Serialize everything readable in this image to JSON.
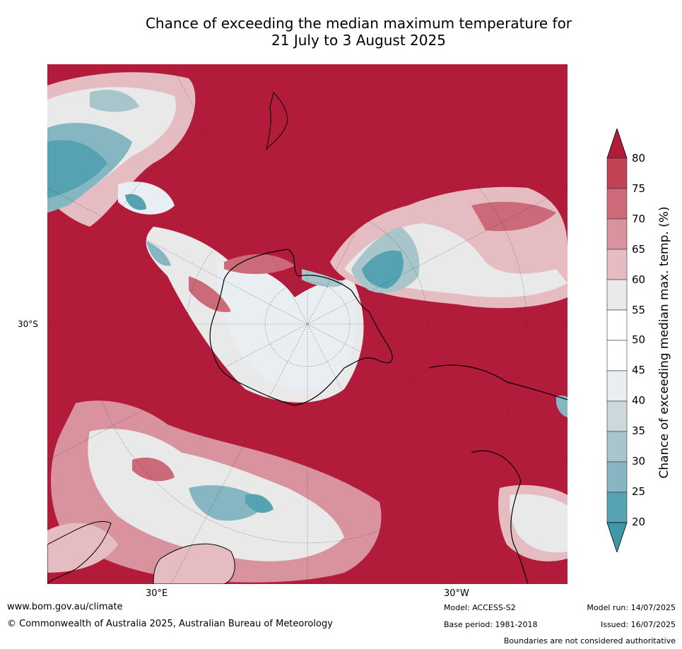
{
  "title": {
    "line1": "Chance of exceeding the median maximum temperature for",
    "line2": "21 July to 3 August 2025"
  },
  "map": {
    "lat_labels": [
      "30°S"
    ],
    "lon_labels": [
      "30°E",
      "30°W"
    ],
    "colors": {
      "p80": "#b31b3a",
      "p75": "#c14155",
      "p70": "#cc6a79",
      "p65": "#d8939e",
      "p60": "#e5bcc2",
      "p55": "#e9e9e9",
      "p50": "#ffffff",
      "p45": "#ffffff",
      "p40": "#e8eef1",
      "p35": "#ccd8dc",
      "p30": "#a9c5cc",
      "p25": "#86b6c1",
      "p20": "#55a3b2",
      "land_outline": "#000000"
    }
  },
  "colorbar": {
    "title": "Chance of exceeding median max. temp. (%)",
    "ticks": [
      "80",
      "75",
      "70",
      "65",
      "60",
      "55",
      "50",
      "45",
      "40",
      "35",
      "30",
      "25",
      "20"
    ],
    "colors": [
      "#b31b3a",
      "#c14155",
      "#cc6a79",
      "#d8939e",
      "#e5bcc2",
      "#e9e9e9",
      "#ffffff",
      "#ffffff",
      "#e8eef1",
      "#ccd8dc",
      "#a9c5cc",
      "#86b6c1",
      "#55a3b2",
      "#3f97a8"
    ]
  },
  "footer": {
    "website": "www.bom.gov.au/climate",
    "copyright": "© Commonwealth of Australia 2025, Australian Bureau of Meteorology",
    "model": "Model: ACCESS-S2",
    "base_period": "Base period: 1981-2018",
    "model_run": "Model run: 14/07/2025",
    "issued": "Issued: 16/07/2025",
    "disclaimer": "Boundaries are not considered authoritative"
  }
}
